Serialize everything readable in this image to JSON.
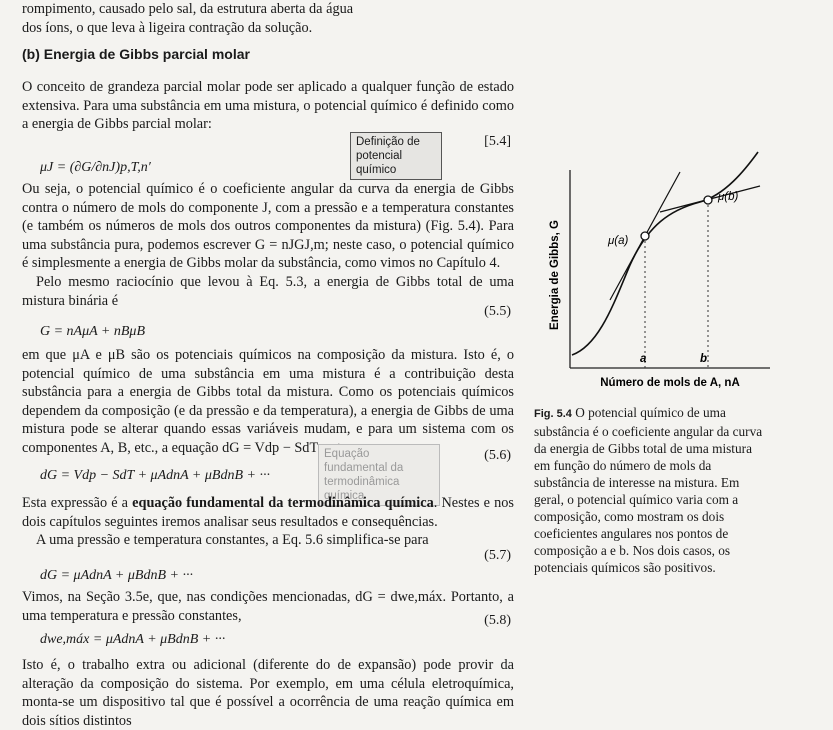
{
  "top": {
    "line1": "rompimento, causado pelo sal, da estrutura aberta da água",
    "line2": "dos íons, o que leva à ligeira contração da solução."
  },
  "section": {
    "heading": "(b) Energia de Gibbs parcial molar"
  },
  "paragraphs": [
    "O conceito de grandeza parcial molar pode ser aplicado a qualquer função de estado extensiva. Para uma substância em uma mistura, o potencial químico é definido como a energia de Gibbs parcial molar:",
    "Ou seja, o potencial químico é o coeficiente angular da curva da energia de Gibbs contra o número de mols do componente J, com a pressão e a temperatura constantes (e também os números de mols dos outros componentes da mistura) (Fig. 5.4). Para uma substância pura, podemos escrever G = nJGJ,m; neste caso, o potencial químico é simplesmente a energia de Gibbs molar da substância, como vimos no Capítulo 4.",
    "Pelo mesmo raciocínio que levou à Eq. 5.3, a energia de Gibbs total de uma mistura binária é",
    "em que μA e μB são os potenciais químicos na composição da mistura. Isto é, o potencial químico de uma substância em uma mistura é a contribuição desta substância para a energia de Gibbs total da mistura. Como os potenciais químicos dependem da composição (e da pressão e da temperatura), a energia de Gibbs de uma mistura pode se alterar quando essas variáveis mudam, e para um sistema com os componentes A, B, etc., a equação dG = Vdp − SdT se torna",
    "A uma pressão e temperatura constantes, a Eq. 5.6 simplifica-se para",
    "Vimos, na Seção 3.5e, que, nas condições mencionadas, dG = dwe,máx. Portanto, a uma temperatura e pressão constantes,",
    "Isto é, o trabalho extra ou adicional (diferente do de expansão) pode provir da alteração da composição do sistema. Por exemplo, em uma célula eletroquímica, monta-se um dispositivo tal que é possível a ocorrência de uma reação química em dois sítios distintos"
  ],
  "emphasis_paragraph": {
    "before": "Esta expressão é a ",
    "bold": "equação fundamental da termodinâmica química",
    "after": ". Nestes e nos dois capítulos seguintes iremos analisar seus resultados e consequências."
  },
  "equations": [
    {
      "formula": "μJ = (∂G/∂nJ)p,T,n′",
      "number": "[5.4]",
      "note": "Definição de potencial químico"
    },
    {
      "formula": "G = nAμA + nBμB",
      "number": "(5.5)"
    },
    {
      "formula": "dG = Vdp − SdT + μAdnA + μBdnB + ···",
      "number": "(5.6)",
      "note": "Equação fundamental da termodinâmica química"
    },
    {
      "formula": "dG = μAdnA + μBdnB + ···",
      "number": "(5.7)"
    },
    {
      "formula": "dwe,máx = μAdnA + μBdnB + ···",
      "number": "(5.8)"
    }
  ],
  "figure": {
    "y_label": "Energia de Gibbs, G",
    "x_label": "Número de mols de A, nA",
    "point_a_label": "μ(a)",
    "point_b_label": "μ(b)",
    "a": "a",
    "b": "b",
    "caption_label": "Fig. 5.4",
    "caption": "O potencial químico de uma substância é o coeficiente angular da curva da energia de Gibbs total de uma mistura em função do número de mols da substância de interesse na mistura. Em geral, o potencial químico varia com a composição, como mostram os dois coeficientes angulares nos pontos de composição a e b. Nos dois casos, os potenciais químicos são positivos."
  }
}
